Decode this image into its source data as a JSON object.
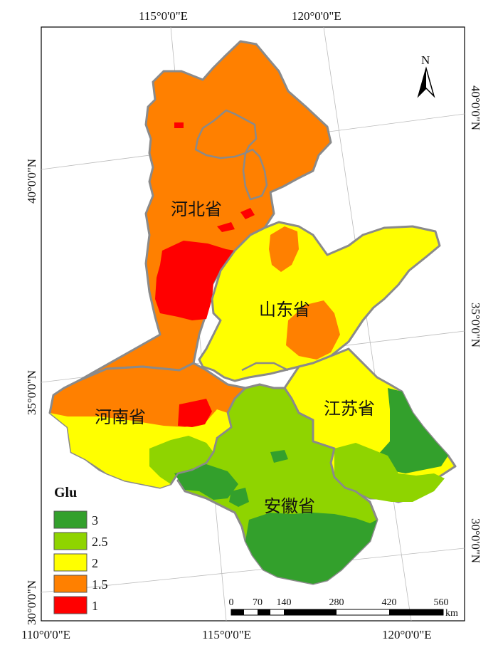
{
  "map": {
    "top_ticks": [
      "115°0'0\"E",
      "120°0'0\"E"
    ],
    "bottom_ticks": [
      "110°0'0\"E",
      "115°0'0\"E",
      "120°0'0\"E"
    ],
    "left_ticks": [
      "40°0'0\"N",
      "35°0'0\"N",
      "30°0'0\"N"
    ],
    "right_ticks": [
      "40°0'0\"N",
      "35°0'0\"N",
      "30°0'0\"N"
    ],
    "provinces": [
      "河北省",
      "山东省",
      "河南省",
      "江苏省",
      "安徽省"
    ],
    "north_label": "N"
  },
  "legend": {
    "title": "Glu",
    "items": [
      {
        "label": "3",
        "color": "#33a02c"
      },
      {
        "label": "2.5",
        "color": "#8fd400"
      },
      {
        "label": "2",
        "color": "#ffff00"
      },
      {
        "label": "1.5",
        "color": "#ff8000"
      },
      {
        "label": "1",
        "color": "#ff0000"
      }
    ]
  },
  "scalebar": {
    "labels": [
      "0",
      "70",
      "140",
      "280",
      "420",
      "560"
    ],
    "unit": "km"
  }
}
